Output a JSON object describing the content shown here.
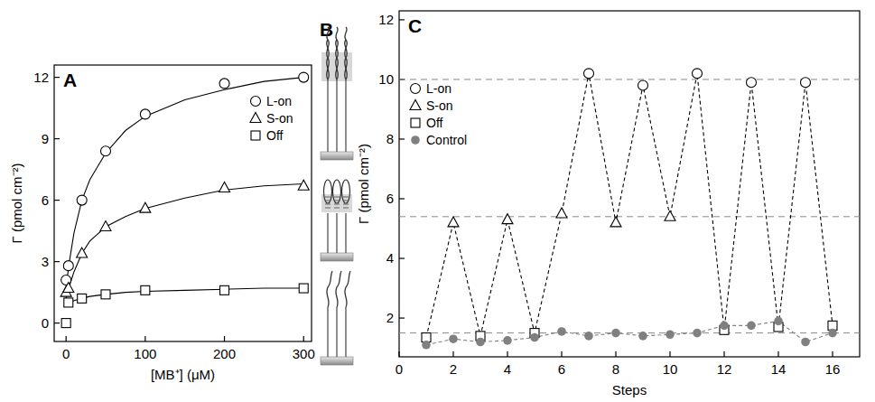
{
  "chart_data": [
    {
      "type": "line",
      "title": "A",
      "x_label": "[MB⁺] (μM)",
      "y_label": "Γ (pmol cm⁻²)",
      "xlim": [
        -15,
        310
      ],
      "ylim": [
        -0.9,
        12.6
      ],
      "xticks": [
        0,
        100,
        200,
        300
      ],
      "yticks": [
        0,
        3,
        6,
        9,
        12
      ],
      "legend": "upper right",
      "series": [
        {
          "name": "L-on",
          "type": "scatter",
          "marker": "circle",
          "color": "#000000",
          "x": [
            0,
            3,
            20,
            50,
            100,
            200,
            300
          ],
          "values": [
            2.1,
            2.8,
            6.0,
            8.4,
            10.2,
            11.7,
            12.0
          ]
        },
        {
          "name": "S-on",
          "type": "scatter",
          "marker": "triangle",
          "color": "#000000",
          "x": [
            0,
            3,
            20,
            50,
            100,
            200,
            300
          ],
          "values": [
            1.5,
            1.7,
            3.4,
            4.7,
            5.6,
            6.6,
            6.7
          ]
        },
        {
          "name": "Off",
          "type": "scatter",
          "marker": "square",
          "color": "#000000",
          "x": [
            0,
            3,
            20,
            50,
            100,
            200,
            300
          ],
          "values": [
            0,
            1.0,
            1.2,
            1.4,
            1.6,
            1.6,
            1.7
          ]
        },
        {
          "type": "line",
          "line_style": "solid",
          "color": "#000000",
          "x": [
            0,
            5,
            10,
            20,
            30,
            50,
            75,
            100,
            150,
            200,
            250,
            300
          ],
          "values": [
            1.8,
            3.2,
            4.4,
            6.0,
            7.0,
            8.3,
            9.4,
            10.1,
            10.9,
            11.4,
            11.8,
            12.0
          ]
        },
        {
          "type": "line",
          "line_style": "solid",
          "color": "#000000",
          "x": [
            0,
            5,
            10,
            20,
            30,
            50,
            75,
            100,
            150,
            200,
            250,
            300
          ],
          "values": [
            1.2,
            1.9,
            2.5,
            3.4,
            4.0,
            4.7,
            5.2,
            5.6,
            6.1,
            6.5,
            6.7,
            6.8
          ]
        },
        {
          "type": "line",
          "line_style": "solid",
          "color": "#000000",
          "x": [
            0,
            5,
            10,
            20,
            30,
            50,
            75,
            100,
            150,
            200,
            250,
            300
          ],
          "values": [
            0.9,
            1.0,
            1.1,
            1.2,
            1.3,
            1.4,
            1.5,
            1.55,
            1.6,
            1.65,
            1.7,
            1.7
          ]
        }
      ]
    },
    {
      "type": "diagram",
      "title": "B"
    },
    {
      "type": "scatter",
      "title": "C",
      "x_label": "Steps",
      "y_label": "Γ (pmol cm⁻²)",
      "xlim": [
        0,
        17
      ],
      "ylim": [
        0.7,
        12.3
      ],
      "xticks": [
        0,
        2,
        4,
        6,
        8,
        10,
        12,
        14,
        16
      ],
      "yticks": [
        2,
        4,
        6,
        8,
        10,
        12
      ],
      "legend": "upper left",
      "hlines": [
        1.5,
        5.4,
        10.0
      ],
      "series": [
        {
          "name": "L-on",
          "type": "scatter",
          "marker": "circle",
          "color": "#000000",
          "x": [
            7,
            9,
            11,
            13,
            15
          ],
          "values": [
            10.2,
            9.8,
            10.2,
            9.9,
            9.9
          ]
        },
        {
          "name": "S-on",
          "type": "scatter",
          "marker": "triangle",
          "color": "#000000",
          "x": [
            2,
            4,
            6,
            8,
            10
          ],
          "values": [
            5.2,
            5.3,
            5.5,
            5.2,
            5.4
          ]
        },
        {
          "name": "Off",
          "type": "scatter",
          "marker": "square",
          "color": "#000000",
          "x": [
            1,
            3,
            5,
            12,
            14,
            16
          ],
          "values": [
            1.35,
            1.4,
            1.5,
            1.6,
            1.7,
            1.75
          ]
        },
        {
          "name": "Control",
          "type": "line",
          "marker": "dot",
          "line_style": "dashed",
          "color": "#808080",
          "x": [
            1,
            2,
            3,
            4,
            5,
            6,
            7,
            8,
            9,
            10,
            11,
            12,
            13,
            14,
            15,
            16
          ],
          "values": [
            1.1,
            1.3,
            1.2,
            1.25,
            1.35,
            1.55,
            1.4,
            1.5,
            1.4,
            1.45,
            1.5,
            1.75,
            1.75,
            1.9,
            1.2,
            1.5
          ]
        },
        {
          "type": "line",
          "line_style": "dashed",
          "color": "#000000",
          "x": [
            1,
            2,
            3,
            4,
            5,
            6,
            7,
            8,
            9,
            10,
            11,
            12,
            13,
            14,
            15,
            16
          ],
          "values": [
            1.35,
            5.2,
            1.4,
            5.3,
            1.5,
            5.5,
            10.2,
            5.2,
            9.8,
            5.4,
            10.2,
            1.6,
            9.9,
            1.7,
            9.9,
            1.75
          ]
        }
      ]
    }
  ]
}
